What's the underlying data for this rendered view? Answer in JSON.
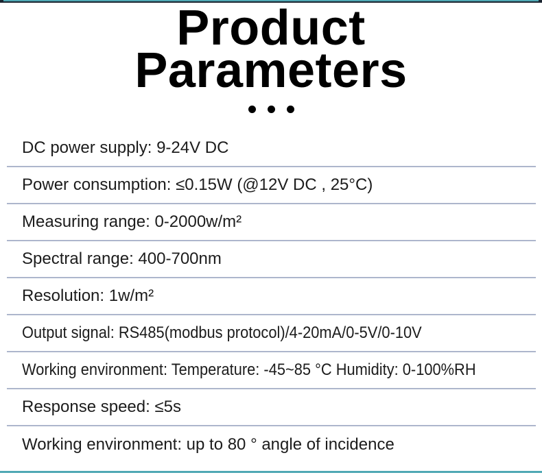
{
  "header": {
    "title": "Product Parameters",
    "title_lines": [
      "Product",
      "Parameters"
    ],
    "ornament_icon": "three-dots-icon"
  },
  "parameters": {
    "rows": [
      "DC power supply: 9-24V DC",
      "Power consumption: ≤0.15W (@12V DC , 25°C)",
      "Measuring range: 0-2000w/m²",
      "Spectral range: 400-700nm",
      "Resolution: 1w/m²",
      "Output signal: RS485(modbus protocol)/4-20mA/0-5V/0-10V",
      "Working environment: Temperature: -45~85 °C Humidity: 0-100%RH",
      "Response speed: ≤5s",
      "Working environment: up to 80 ° angle of incidence"
    ]
  },
  "colors": {
    "accent_teal": "#4fa8b4",
    "accent_navy": "#1b2530",
    "divider": "#adb6cc",
    "text": "#1c1c1c",
    "background": "#ffffff"
  }
}
